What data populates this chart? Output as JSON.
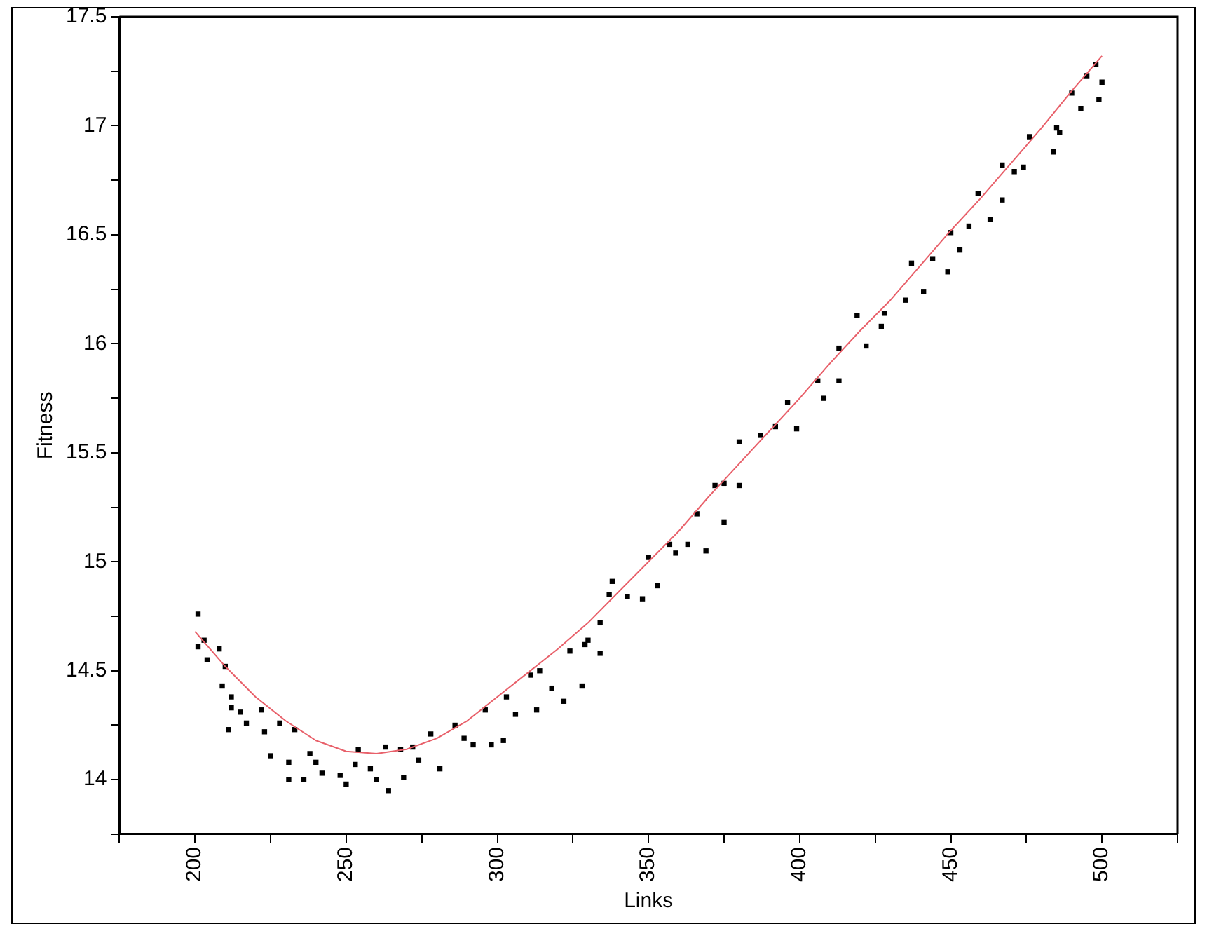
{
  "chart_data": {
    "type": "scatter",
    "xlabel": "Links",
    "ylabel": "Fitness",
    "marker": "square",
    "grid": false,
    "legend": false,
    "xlim": [
      175,
      525
    ],
    "xticks": [
      {
        "value": 175,
        "label": null
      },
      200,
      {
        "value": 225,
        "label": null
      },
      250,
      {
        "value": 275,
        "label": null
      },
      300,
      {
        "value": 325,
        "label": null
      },
      350,
      {
        "value": 375,
        "label": null
      },
      400,
      {
        "value": 425,
        "label": null
      },
      450,
      {
        "value": 475,
        "label": null
      },
      500,
      {
        "value": 525,
        "label": null
      }
    ],
    "ylim": [
      13.75,
      17.5
    ],
    "yticks": [
      {
        "value": 13.75,
        "label": null
      },
      14,
      {
        "value": 14.25,
        "label": null
      },
      14.5,
      {
        "value": 14.75,
        "label": null
      },
      15,
      {
        "value": 15.25,
        "label": null
      },
      15.5,
      {
        "value": 15.75,
        "label": null
      },
      16,
      {
        "value": 16.25,
        "label": null
      },
      16.5,
      {
        "value": 16.75,
        "label": null
      },
      17,
      {
        "value": 17.25,
        "label": null
      },
      17.5
    ],
    "series": [
      {
        "color": "#000000",
        "x": [
          201,
          201,
          203,
          204,
          208,
          209,
          210,
          211,
          212,
          212,
          215,
          217,
          222,
          223,
          225,
          228,
          231,
          231,
          233,
          236,
          238,
          240,
          242,
          248,
          250,
          253,
          254,
          258,
          260,
          263,
          264,
          268,
          269,
          272,
          274,
          278,
          281,
          286,
          289,
          292,
          296,
          298,
          302,
          303,
          306,
          311,
          313,
          314,
          318,
          322,
          324,
          328,
          329,
          330,
          334,
          334,
          337,
          338,
          343,
          348,
          350,
          353,
          357,
          359,
          363,
          366,
          369,
          372,
          375,
          375,
          380,
          380,
          387,
          392,
          396,
          399,
          406,
          408,
          413,
          413,
          419,
          422,
          427,
          428,
          435,
          437,
          441,
          444,
          449,
          450,
          453,
          456,
          459,
          463,
          467,
          467,
          471,
          474,
          476,
          484,
          485,
          486,
          490,
          493,
          495,
          498,
          499,
          500
        ],
        "values": [
          14.76,
          14.61,
          14.64,
          14.55,
          14.6,
          14.43,
          14.52,
          14.23,
          14.38,
          14.33,
          14.31,
          14.26,
          14.32,
          14.22,
          14.11,
          14.26,
          14.08,
          14.0,
          14.23,
          14.0,
          14.12,
          14.08,
          14.03,
          14.02,
          13.98,
          14.07,
          14.14,
          14.05,
          14.0,
          14.15,
          13.95,
          14.14,
          14.01,
          14.15,
          14.09,
          14.21,
          14.05,
          14.25,
          14.19,
          14.16,
          14.32,
          14.16,
          14.18,
          14.38,
          14.3,
          14.48,
          14.32,
          14.5,
          14.42,
          14.36,
          14.59,
          14.43,
          14.62,
          14.64,
          14.58,
          14.72,
          14.85,
          14.91,
          14.84,
          14.83,
          15.02,
          14.89,
          15.08,
          15.04,
          15.08,
          15.22,
          15.05,
          15.35,
          15.18,
          15.36,
          15.35,
          15.55,
          15.58,
          15.62,
          15.73,
          15.61,
          15.83,
          15.75,
          15.98,
          15.83,
          16.13,
          15.99,
          16.08,
          16.14,
          16.2,
          16.37,
          16.24,
          16.39,
          16.33,
          16.51,
          16.43,
          16.54,
          16.69,
          16.57,
          16.66,
          16.82,
          16.79,
          16.81,
          16.95,
          16.88,
          16.99,
          16.97,
          17.15,
          17.08,
          17.23,
          17.28,
          17.12,
          17.2
        ]
      },
      {
        "type": "line",
        "color": "#e8606a",
        "marker": "none",
        "line_style": "solid",
        "x": [
          200,
          210,
          220,
          230,
          240,
          250,
          260,
          270,
          280,
          290,
          300,
          310,
          320,
          330,
          340,
          350,
          360,
          370,
          380,
          390,
          400,
          410,
          420,
          430,
          440,
          450,
          460,
          470,
          480,
          490,
          500
        ],
        "values": [
          14.68,
          14.52,
          14.38,
          14.27,
          14.18,
          14.13,
          14.12,
          14.14,
          14.19,
          14.27,
          14.38,
          14.49,
          14.6,
          14.72,
          14.86,
          15.0,
          15.14,
          15.3,
          15.45,
          15.6,
          15.75,
          15.91,
          16.06,
          16.2,
          16.36,
          16.52,
          16.67,
          16.83,
          16.99,
          17.16,
          17.32
        ]
      }
    ]
  }
}
